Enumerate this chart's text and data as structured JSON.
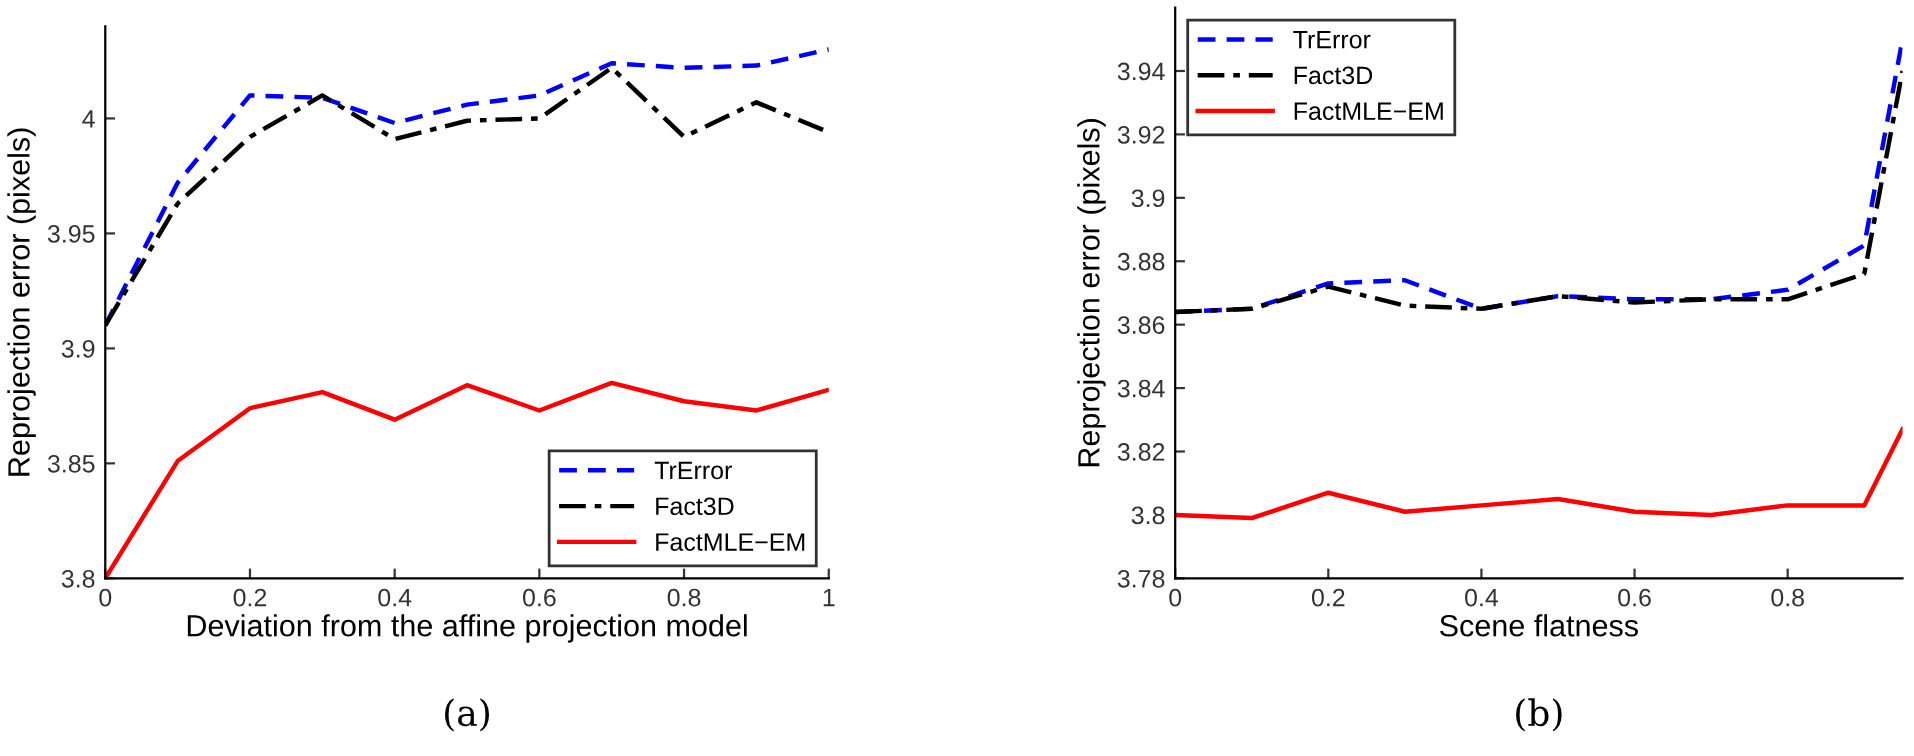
{
  "chart_data": [
    {
      "type": "line",
      "xlabel": "Deviation from the affine projection model",
      "ylabel": "Reprojection error (pixels)",
      "x": [
        0,
        0.1,
        0.2,
        0.3,
        0.4,
        0.5,
        0.6,
        0.7,
        0.8,
        0.9,
        1
      ],
      "series": [
        {
          "name": "TrError",
          "color": "#0000ff",
          "line_style": "dashed",
          "values": [
            3.91,
            3.972,
            4.01,
            4.009,
            3.998,
            4.006,
            4.01,
            4.024,
            4.022,
            4.023,
            4.03
          ]
        },
        {
          "name": "Fact3D",
          "color": "#000000",
          "line_style": "dashdot",
          "values": [
            3.91,
            3.963,
            3.992,
            4.01,
            3.991,
            3.999,
            4.0,
            4.022,
            3.992,
            4.007,
            3.994
          ]
        },
        {
          "name": "FactMLE−EM",
          "color": "#ff0000",
          "line_style": "solid",
          "values": [
            3.8,
            3.851,
            3.874,
            3.881,
            3.869,
            3.884,
            3.873,
            3.885,
            3.877,
            3.873,
            3.882
          ]
        }
      ],
      "xlim": [
        0,
        1
      ],
      "xticks": [
        0,
        0.2,
        0.4,
        0.6,
        0.8,
        1
      ],
      "ylim": [
        3.8,
        4.04
      ],
      "yticks": [
        3.8,
        3.85,
        3.9,
        3.95,
        4
      ],
      "grid": false,
      "legend": "bottom right",
      "annotations": [
        "(a)"
      ]
    },
    {
      "type": "line",
      "xlabel": "Scene flatness",
      "ylabel": "Reprojection error (pixels)",
      "x": [
        0,
        0.1,
        0.2,
        0.3,
        0.4,
        0.5,
        0.6,
        0.7,
        0.8,
        0.9,
        0.95
      ],
      "series": [
        {
          "name": "TrError",
          "color": "#0000ff",
          "line_style": "dashed",
          "values": [
            3.864,
            3.865,
            3.873,
            3.874,
            3.865,
            3.869,
            3.868,
            3.868,
            3.871,
            3.885,
            3.95
          ]
        },
        {
          "name": "Fact3D",
          "color": "#000000",
          "line_style": "dashdot",
          "values": [
            3.864,
            3.865,
            3.872,
            3.866,
            3.865,
            3.869,
            3.867,
            3.868,
            3.868,
            3.876,
            3.94
          ]
        },
        {
          "name": "FactMLE−EM",
          "color": "#ff0000",
          "line_style": "solid",
          "values": [
            3.8,
            3.799,
            3.807,
            3.801,
            3.803,
            3.805,
            3.801,
            3.8,
            3.803,
            3.803,
            3.827
          ]
        }
      ],
      "xlim": [
        0,
        0.95
      ],
      "xticks": [
        0,
        0.2,
        0.4,
        0.6,
        0.8
      ],
      "ylim": [
        3.78,
        3.96
      ],
      "yticks": [
        3.78,
        3.8,
        3.82,
        3.84,
        3.86,
        3.88,
        3.9,
        3.92,
        3.94
      ],
      "grid": false,
      "legend": "top left",
      "annotations": [
        "(b)"
      ]
    }
  ]
}
